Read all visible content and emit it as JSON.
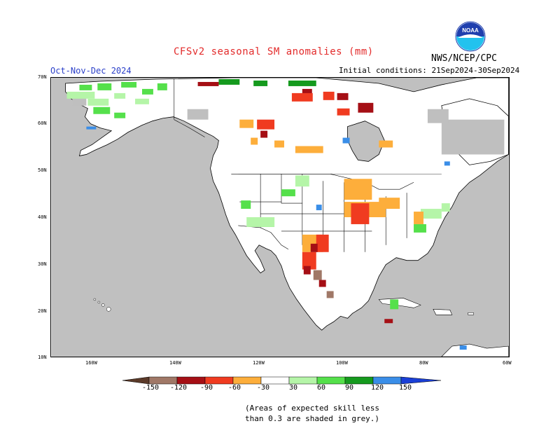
{
  "header": {
    "title": "CFSv2 seasonal SM anomalies (mm)",
    "season": "Oct-Nov-Dec 2024",
    "initial_conditions": "Initial conditions: 21Sep2024-30Sep2024",
    "agency": "NWS/NCEP/CPC",
    "logo_text": "NOAA"
  },
  "axes": {
    "latitude_labels": [
      "70N",
      "60N",
      "50N",
      "40N",
      "30N",
      "20N",
      "10N"
    ],
    "longitude_labels": [
      "160W",
      "140W",
      "120W",
      "100W",
      "80W",
      "60W"
    ]
  },
  "legend": {
    "labels": [
      "-150",
      "-120",
      "-90",
      "-60",
      "-30",
      "30",
      "60",
      "90",
      "120",
      "150"
    ],
    "colors": {
      "lt_neg150": "#5b3a29",
      "neg150_neg120": "#a07867",
      "neg120_neg90": "#a50f15",
      "neg90_neg60": "#f03b20",
      "neg60_neg30": "#fdae3b",
      "neg30_30": "#ffffff",
      "pos30_60": "#b5f5a8",
      "pos60_90": "#55e04b",
      "pos90_120": "#159a1e",
      "pos120_150": "#3a8ee8",
      "gt_150": "#1a3fd6",
      "low_skill_grey": "#bfbfbf",
      "ocean_grey": "#c0c0c0"
    }
  },
  "footnote": {
    "line1": "(Areas of expected skill less",
    "line2": "than 0.3 are shaded in grey.)"
  }
}
